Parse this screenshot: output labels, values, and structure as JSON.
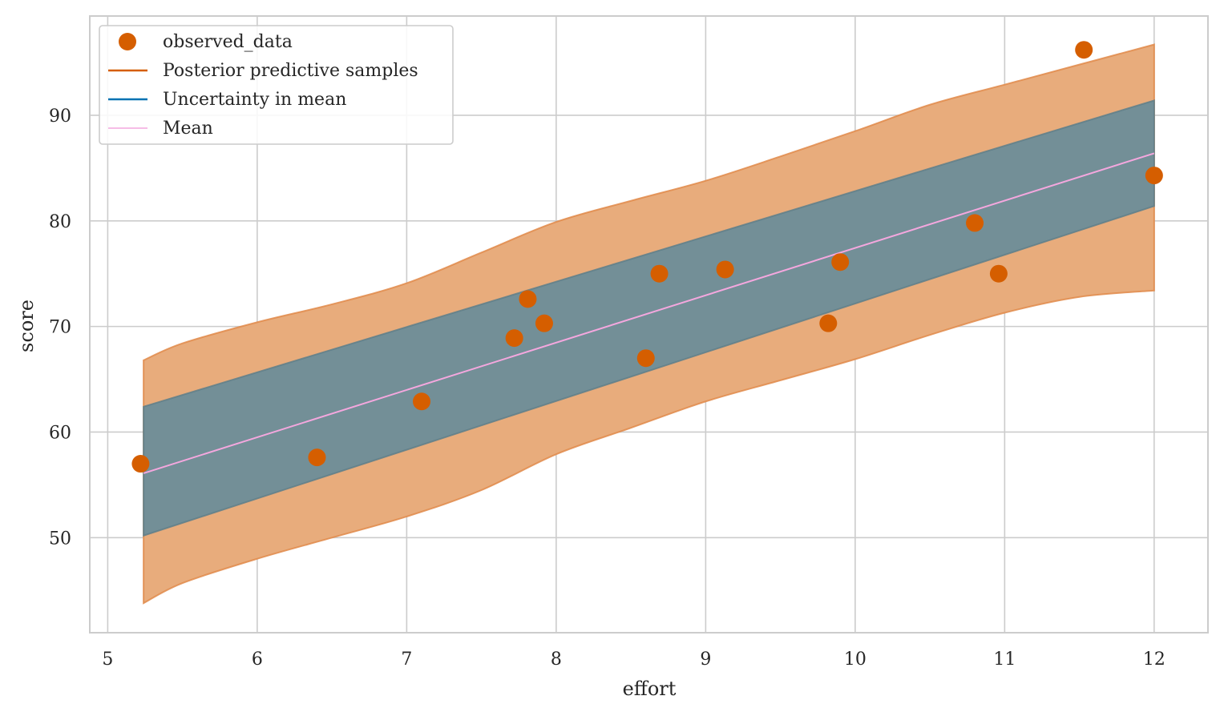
{
  "chart_data": {
    "type": "scatter",
    "title": "",
    "xlabel": "effort",
    "ylabel": "score",
    "xlim": [
      4.88,
      12.36
    ],
    "ylim": [
      41.0,
      99.4
    ],
    "xticks": [
      5,
      6,
      7,
      8,
      9,
      10,
      11,
      12
    ],
    "yticks": [
      50,
      60,
      70,
      80,
      90
    ],
    "grid": true,
    "legend_position": "upper-left",
    "colors": {
      "observed": "#d55e00",
      "predictive_fill": "#e8ac7c",
      "predictive_edge": "#e08a4a",
      "mean_uncertainty_fill": "#738f97",
      "mean_uncertainty_edge": "#5f7f89",
      "mean_line": "#f4a7de",
      "grid": "#cccccc",
      "frame": "#cccccc"
    },
    "observed_data": {
      "name": "observed_data",
      "x": [
        5.22,
        6.4,
        7.1,
        7.72,
        7.81,
        7.92,
        8.6,
        8.69,
        9.13,
        9.82,
        9.9,
        10.8,
        10.96,
        11.53,
        12.0
      ],
      "y": [
        57.0,
        57.6,
        62.9,
        68.9,
        72.6,
        70.3,
        67.0,
        75.0,
        75.4,
        70.3,
        76.1,
        79.8,
        75.0,
        96.2,
        84.3
      ]
    },
    "posterior_predictive": {
      "name": "Posterior predictive samples",
      "x": [
        5.24,
        5.5,
        6.0,
        6.5,
        7.0,
        7.5,
        8.0,
        8.5,
        9.0,
        9.5,
        10.0,
        10.5,
        11.0,
        11.5,
        12.0
      ],
      "upper": [
        66.8,
        68.4,
        70.4,
        72.1,
        74.1,
        77.0,
        79.9,
        81.9,
        83.8,
        86.1,
        88.5,
        91.0,
        92.9,
        94.8,
        96.7
      ],
      "lower": [
        43.8,
        45.7,
        48.0,
        50.0,
        52.0,
        54.5,
        57.9,
        60.4,
        62.9,
        64.9,
        66.9,
        69.2,
        71.3,
        72.8,
        73.4
      ]
    },
    "mean_uncertainty": {
      "name": "Uncertainty in mean",
      "x": [
        5.24,
        12.0
      ],
      "upper": [
        62.4,
        91.4
      ],
      "lower": [
        50.2,
        81.4
      ]
    },
    "mean_line": {
      "name": "Mean",
      "x": [
        5.24,
        12.0
      ],
      "y": [
        56.1,
        86.4
      ]
    },
    "legend": [
      "observed_data",
      "Posterior predictive samples",
      "Uncertainty in mean",
      "Mean"
    ]
  }
}
